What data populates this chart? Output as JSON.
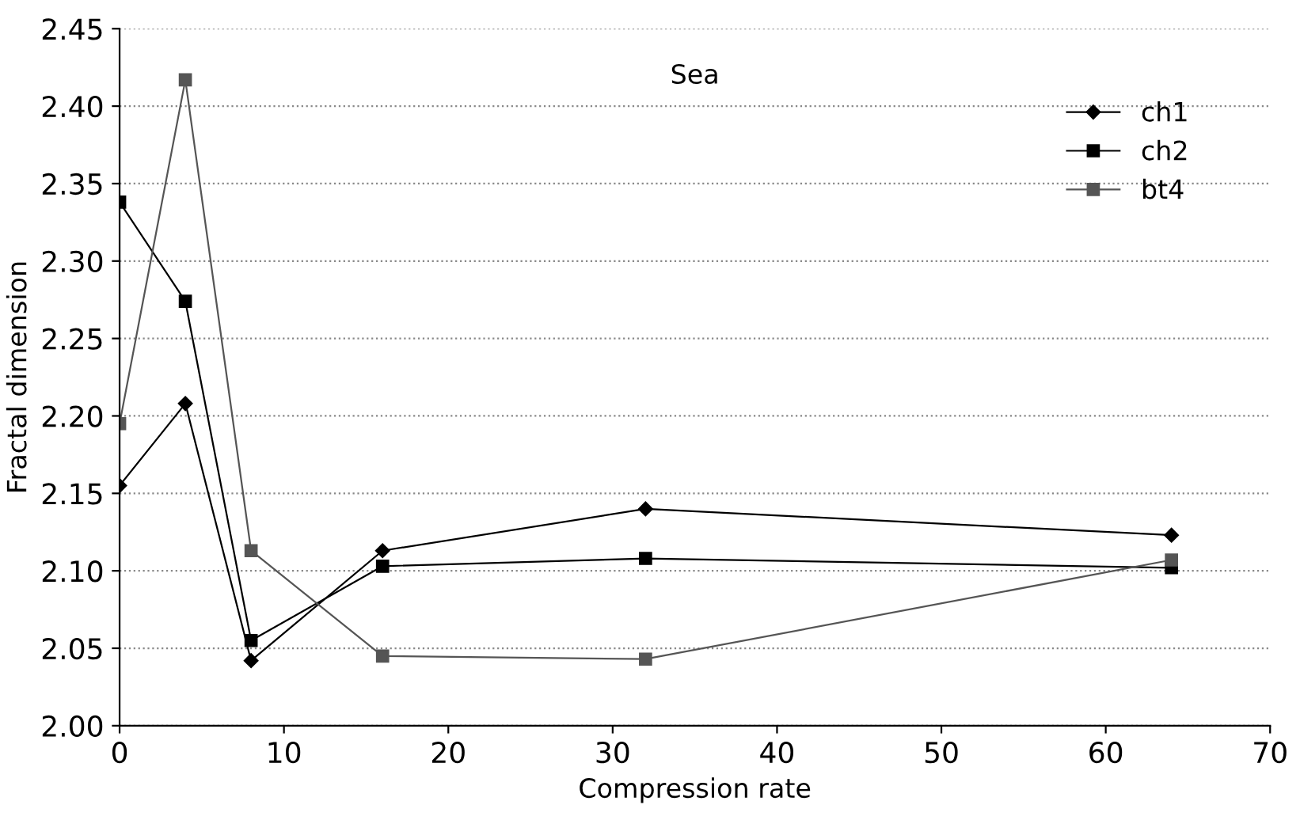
{
  "chart_data": {
    "type": "line",
    "title": "Sea",
    "xlabel": "Compression rate",
    "ylabel": "Fractal dimension",
    "x": [
      0,
      4,
      8,
      16,
      32,
      64
    ],
    "series": [
      {
        "name": "ch1",
        "color": "#000000",
        "marker": "diamond",
        "values": [
          2.155,
          2.208,
          2.042,
          2.113,
          2.14,
          2.123
        ]
      },
      {
        "name": "ch2",
        "color": "#000000",
        "marker": "square",
        "values": [
          2.338,
          2.274,
          2.055,
          2.103,
          2.108,
          2.102
        ]
      },
      {
        "name": "bt4",
        "color": "#555555",
        "marker": "square",
        "values": [
          2.195,
          2.417,
          2.113,
          2.045,
          2.043,
          2.107
        ]
      }
    ],
    "xlim": [
      0,
      70
    ],
    "xticks": [
      0,
      10,
      20,
      30,
      40,
      50,
      60,
      70
    ],
    "ylim": [
      2.0,
      2.45
    ],
    "yticks": [
      {
        "value": 2.0,
        "label": "2.00"
      },
      {
        "value": 2.05,
        "label": "2.05"
      },
      {
        "value": 2.1,
        "label": "2.10"
      },
      {
        "value": 2.15,
        "label": "2.15"
      },
      {
        "value": 2.2,
        "label": "2.20"
      },
      {
        "value": 2.25,
        "label": "2.25"
      },
      {
        "value": 2.3,
        "label": "2.30"
      },
      {
        "value": 2.35,
        "label": "2.35"
      },
      {
        "value": 2.4,
        "label": "2.40"
      },
      {
        "value": 2.45,
        "label": "2.45"
      }
    ],
    "grid": "y",
    "legend": "top right",
    "line_style": "solid"
  }
}
